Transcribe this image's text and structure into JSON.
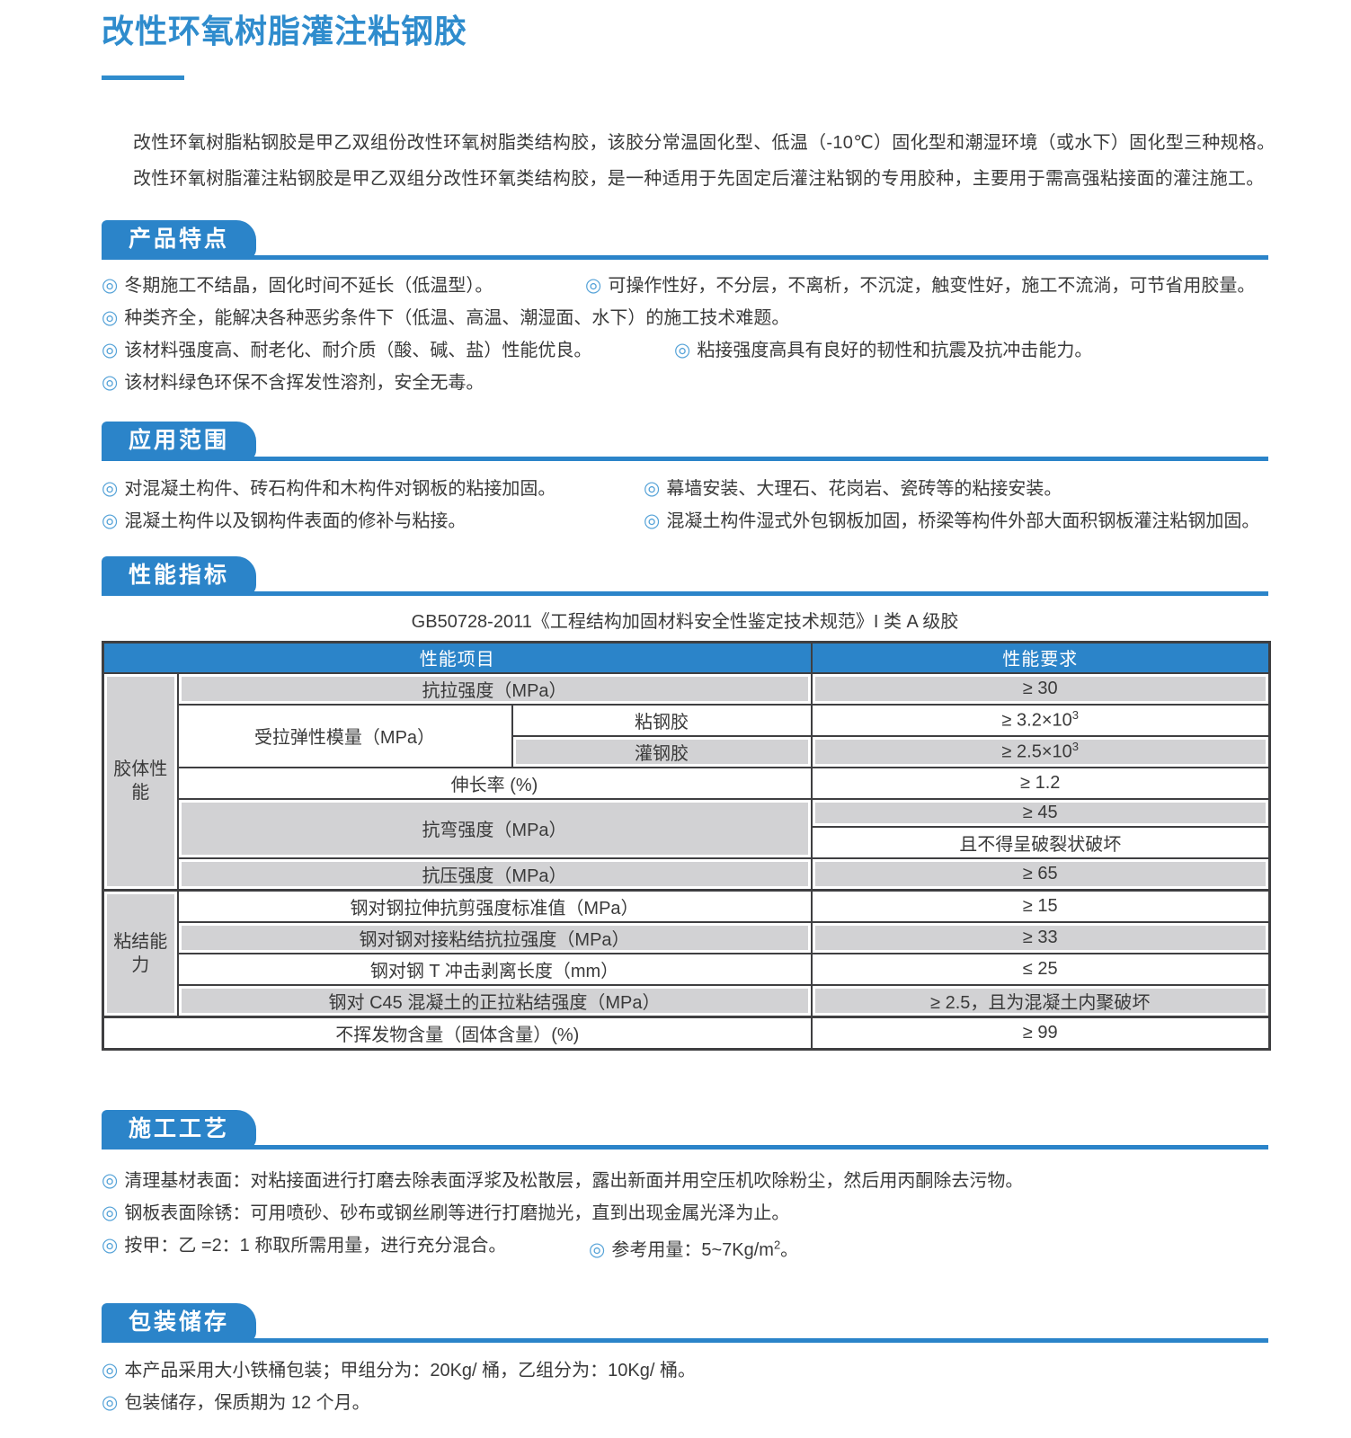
{
  "colors": {
    "accent": "#2b84c9",
    "title_blue": "#2f8ccd",
    "row_gray": "#d2d2d4",
    "border_dark": "#3f3f41",
    "text": "#3a3a3a"
  },
  "icons": {
    "bullet": "◎"
  },
  "page": {
    "title": "改性环氧树脂灌注粘钢胶",
    "intro_lines": [
      "改性环氧树脂粘钢胶是甲乙双组份改性环氧树脂类结构胶，该胶分常温固化型、低温（-10℃）固化型和潮湿环境（或水下）固化型三种规格。",
      "改性环氧树脂灌注粘钢胶是甲乙双组分改性环氧类结构胶，是一种适用于先固定后灌注粘钢的专用胶种，主要用于需高强粘接面的灌注施工。"
    ]
  },
  "sections": {
    "features": {
      "heading": "产品特点",
      "rows": [
        {
          "left": "冬期施工不结晶，固化时间不延长（低温型）。",
          "right": "可操作性好，不分层，不离析，不沉淀，触变性好，施工不流淌，可节省用胶量。"
        },
        {
          "left": "种类齐全，能解决各种恶劣条件下（低温、高温、潮湿面、水下）的施工技术难题。"
        },
        {
          "left": "该材料强度高、耐老化、耐介质（酸、碱、盐）性能优良。",
          "right": "粘接强度高具有良好的韧性和抗震及抗冲击能力。"
        },
        {
          "left": "该材料绿色环保不含挥发性溶剂，安全无毒。"
        }
      ]
    },
    "applications": {
      "heading": "应用范围",
      "rows": [
        {
          "left": "对混凝土构件、砖石构件和木构件对钢板的粘接加固。",
          "right": "幕墙安装、大理石、花岗岩、瓷砖等的粘接安装。"
        },
        {
          "left": "混凝土构件以及钢构件表面的修补与粘接。",
          "right": "混凝土构件湿式外包钢板加固，桥梁等构件外部大面积钢板灌注粘钢加固。"
        }
      ]
    },
    "performance": {
      "heading": "性能指标",
      "caption": "GB50728-2011《工程结构加固材料安全性鉴定技术规范》I 类 A 级胶",
      "table": {
        "header": {
          "left": "性能项目",
          "right": "性能要求"
        },
        "groups": {
          "g1": "胶体性能",
          "g2": "粘结能力"
        },
        "rows": {
          "tensile": {
            "name": "抗拉强度（MPa）",
            "req": "≥ 30"
          },
          "modulus": {
            "name": "受拉弹性模量（MPa）"
          },
          "modulus_bond": {
            "name": "粘钢胶",
            "req": "≥ 3.2×10",
            "sup": "3"
          },
          "modulus_pour": {
            "name": "灌钢胶",
            "req": "≥ 2.5×10",
            "sup": "3"
          },
          "elongation": {
            "name": "伸长率 (%)",
            "req": "≥ 1.2"
          },
          "flexural": {
            "name": "抗弯强度（MPa）",
            "req": "≥ 45",
            "req2": "且不得呈破裂状破坏"
          },
          "compressive": {
            "name": "抗压强度（MPa）",
            "req": "≥ 65"
          },
          "shear": {
            "name": "钢对钢拉伸抗剪强度标准值（MPa）",
            "req": "≥ 15"
          },
          "butt_tensile": {
            "name": "钢对钢对接粘结抗拉强度（MPa）",
            "req": "≥ 33"
          },
          "t_impact": {
            "name": "钢对钢 T 冲击剥离长度（mm）",
            "req": "≤ 25"
          },
          "c45": {
            "name": "钢对 C45 混凝土的正拉粘结强度（MPa）",
            "req": "≥ 2.5，且为混凝土内聚破坏"
          },
          "nonvolatile": {
            "name": "不挥发物含量（固体含量）(%)",
            "req": "≥ 99"
          }
        }
      }
    },
    "process": {
      "heading": "施工工艺",
      "rows": [
        {
          "left": "清理基材表面：对粘接面进行打磨去除表面浮浆及松散层，露出新面并用空压机吹除粉尘，然后用丙酮除去污物。"
        },
        {
          "left": "钢板表面除锈：可用喷砂、砂布或钢丝刷等进行打磨抛光，直到出现金属光泽为止。"
        },
        {
          "left": "按甲：乙 =2：1 称取所需用量，进行充分混合。",
          "right": "参考用量：5~7Kg/m",
          "right_sup": "2",
          "right_tail": "。"
        }
      ]
    },
    "packaging": {
      "heading": "包装储存",
      "rows": [
        {
          "left": "本产品采用大小铁桶包装；甲组分为：20Kg/ 桶，乙组分为：10Kg/ 桶。"
        },
        {
          "left": "包装储存，保质期为 12 个月。"
        }
      ]
    }
  }
}
